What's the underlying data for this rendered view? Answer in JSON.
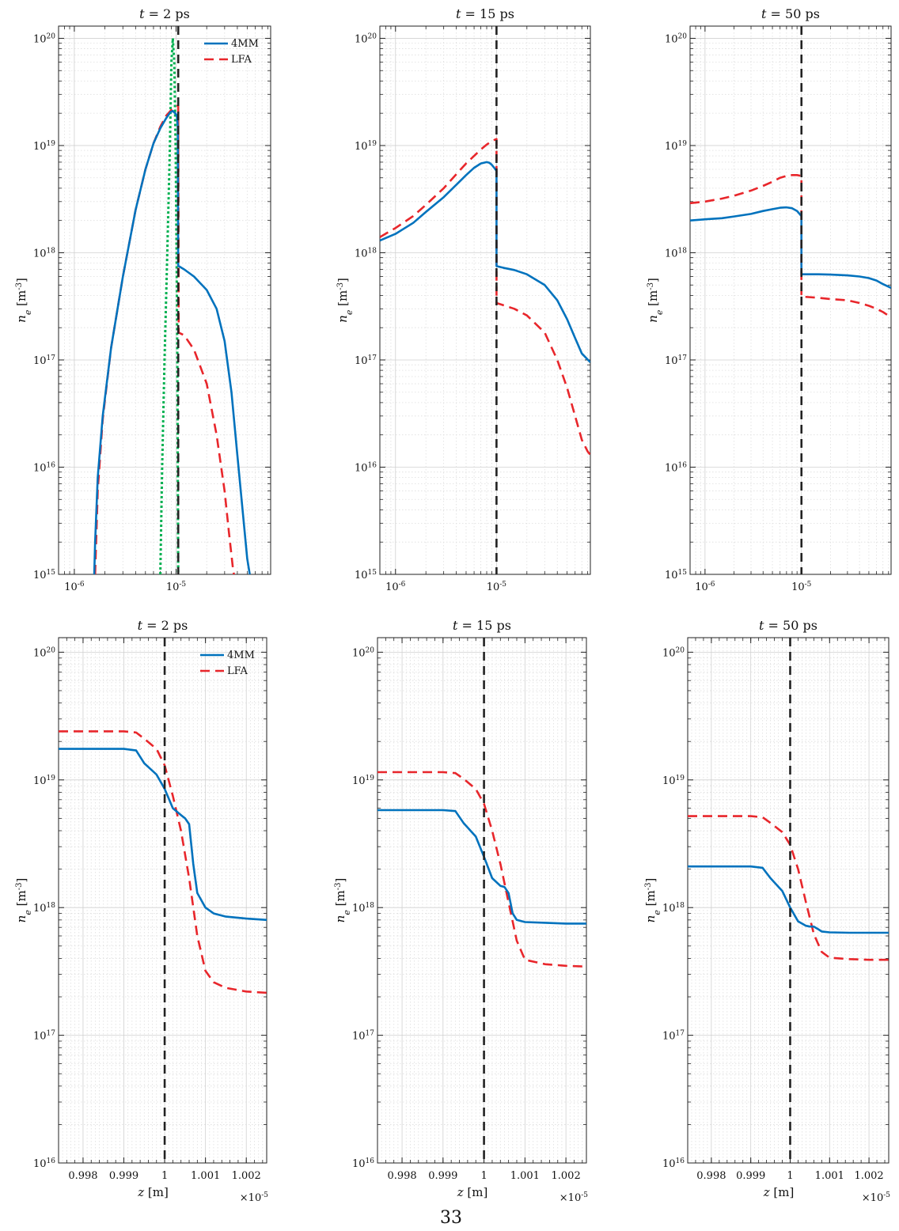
{
  "page_number": "33",
  "colors": {
    "4MM": "#0072bd",
    "LFA": "#e8262b",
    "reference": "#00b050",
    "interface": "#222222"
  },
  "chart_data": [
    {
      "id": "top-left",
      "type": "line",
      "title": "t = 2 ps",
      "xscale": "log",
      "yscale": "log",
      "xlim": [
        7e-07,
        8.5e-05
      ],
      "ylim": [
        1000000000000000.0,
        1.3e+20
      ],
      "ylabel": "n_e [m^-3]",
      "xlabel": "",
      "xticks": [
        {
          "v": 1e-06,
          "label": "10^-6"
        },
        {
          "v": 1e-05,
          "label": "10^-5"
        }
      ],
      "yticks": [
        {
          "v": 1000000000000000.0,
          "label": "10^15"
        },
        {
          "v": 1e+16,
          "label": "10^16"
        },
        {
          "v": 1e+17,
          "label": "10^17"
        },
        {
          "v": 1e+18,
          "label": "10^18"
        },
        {
          "v": 1e+19,
          "label": "10^19"
        },
        {
          "v": 1e+20,
          "label": "10^20"
        }
      ],
      "grid": true,
      "legend": "top-right",
      "interface_x": 1.05e-05,
      "series": [
        {
          "name": "4MM",
          "color": "#0072bd",
          "dash": "solid",
          "x": [
            1.57e-06,
            1.6e-06,
            1.7e-06,
            1.9e-06,
            2.3e-06,
            3e-06,
            4e-06,
            5e-06,
            6e-06,
            7e-06,
            8e-06,
            8.8e-06,
            9.3e-06,
            9.8e-06,
            1.02e-05,
            1.04e-05,
            1.05e-05,
            1.06e-05,
            1.2e-05,
            1.5e-05,
            2e-05,
            2.5e-05,
            3e-05,
            3.5e-05,
            4e-05,
            4.5e-05,
            5e-05,
            5.3e-05
          ],
          "y": [
            1000000000000000.0,
            2000000000000000.0,
            8000000000000000.0,
            3e+16,
            1.3e+17,
            6e+17,
            2.5e+18,
            6e+18,
            1.05e+19,
            1.45e+19,
            1.8e+19,
            2.05e+19,
            2.1e+19,
            2e+19,
            1.9e+19,
            1.5e+19,
            7.5e+17,
            7.5e+17,
            7e+17,
            6e+17,
            4.5e+17,
            3e+17,
            1.5e+17,
            5e+16,
            1.3e+16,
            4000000000000000.0,
            1400000000000000.0,
            1000000000000000.0
          ]
        },
        {
          "name": "LFA",
          "color": "#e8262b",
          "dash": "dashed",
          "x": [
            1.6e-06,
            1.7e-06,
            1.9e-06,
            2.3e-06,
            3e-06,
            4e-06,
            5e-06,
            6e-06,
            7e-06,
            8e-06,
            9e-06,
            9.5e-06,
            1.02e-05,
            1.05e-05,
            1.06e-05,
            1.2e-05,
            1.5e-05,
            2e-05,
            2.5e-05,
            3e-05,
            3.3e-05,
            3.6e-05,
            3.7e-05
          ],
          "y": [
            1000000000000000.0,
            6000000000000000.0,
            2.8e+16,
            1.3e+17,
            6e+17,
            2.5e+18,
            6e+18,
            1.05e+19,
            1.5e+19,
            1.9e+19,
            2.15e+19,
            2.2e+19,
            2.3e+19,
            2.4e+19,
            1.8e+17,
            1.7e+17,
            1.25e+17,
            6e+16,
            2e+16,
            6000000000000000.0,
            2500000000000000.0,
            1200000000000000.0,
            1000000000000000.0
          ]
        },
        {
          "name": "",
          "color": "#00b050",
          "dash": "dotted",
          "x": [
            7e-06,
            7.3e-06,
            7.7e-06,
            8.2e-06,
            8.7e-06,
            9e-06,
            9.3e-06,
            9.6e-06,
            9.9e-06,
            1.01e-05,
            1.03e-05,
            1.05e-05
          ],
          "y": [
            1000000000000000.0,
            1e+16,
            1e+17,
            1e+18,
            1e+19,
            6e+19,
            1e+20,
            6e+19,
            1e+19,
            1e+18,
            1e+17,
            1000000000000000.0
          ]
        }
      ],
      "legend_items": [
        "4MM",
        "LFA"
      ]
    },
    {
      "id": "top-middle",
      "type": "line",
      "title": "t = 15 ps",
      "xscale": "log",
      "yscale": "log",
      "xlim": [
        7e-07,
        8.5e-05
      ],
      "ylim": [
        1000000000000000.0,
        1.3e+20
      ],
      "ylabel": "n_e [m^-3]",
      "xlabel": "",
      "xticks": [
        {
          "v": 1e-06,
          "label": "10^-6"
        },
        {
          "v": 1e-05,
          "label": "10^-5"
        }
      ],
      "yticks": [
        {
          "v": 1000000000000000.0,
          "label": "10^15"
        },
        {
          "v": 1e+16,
          "label": "10^16"
        },
        {
          "v": 1e+17,
          "label": "10^17"
        },
        {
          "v": 1e+18,
          "label": "10^18"
        },
        {
          "v": 1e+19,
          "label": "10^19"
        },
        {
          "v": 1e+20,
          "label": "10^20"
        }
      ],
      "grid": true,
      "legend": "none",
      "interface_x": 1e-05,
      "series": [
        {
          "name": "4MM",
          "color": "#0072bd",
          "dash": "solid",
          "x": [
            7e-07,
            1e-06,
            1.5e-06,
            2e-06,
            3e-06,
            4e-06,
            5e-06,
            6e-06,
            7e-06,
            8e-06,
            8.5e-06,
            9e-06,
            9.5e-06,
            1e-05,
            1e-05,
            1.2e-05,
            1.5e-05,
            2e-05,
            3e-05,
            4e-05,
            5e-05,
            6e-05,
            7e-05,
            8.5e-05
          ],
          "y": [
            1.3e+18,
            1.5e+18,
            1.9e+18,
            2.4e+18,
            3.3e+18,
            4.3e+18,
            5.3e+18,
            6.2e+18,
            6.8e+18,
            7e+18,
            6.9e+18,
            6.6e+18,
            6.2e+18,
            5.8e+18,
            7.5e+17,
            7.2e+17,
            6.9e+17,
            6.3e+17,
            5e+17,
            3.6e+17,
            2.4e+17,
            1.6e+17,
            1.15e+17,
            9.5e+16
          ]
        },
        {
          "name": "LFA",
          "color": "#e8262b",
          "dash": "dashed",
          "x": [
            7e-07,
            1e-06,
            1.5e-06,
            2e-06,
            3e-06,
            4e-06,
            5e-06,
            6e-06,
            7e-06,
            8e-06,
            9e-06,
            1e-05,
            1e-05,
            1.5e-05,
            2e-05,
            3e-05,
            4e-05,
            5e-05,
            6e-05,
            7e-05,
            8e-05,
            8.5e-05
          ],
          "y": [
            1.4e+18,
            1.7e+18,
            2.2e+18,
            2.8e+18,
            4e+18,
            5.4e+18,
            6.8e+18,
            8e+18,
            9.2e+18,
            1.02e+19,
            1.1e+19,
            1.15e+19,
            3.4e+17,
            3e+17,
            2.6e+17,
            1.8e+17,
            1e+17,
            5.5e+16,
            3e+16,
            1.8e+16,
            1.4e+16,
            1.3e+16
          ]
        }
      ],
      "legend_items": []
    },
    {
      "id": "top-right",
      "type": "line",
      "title": "t = 50 ps",
      "xscale": "log",
      "yscale": "log",
      "xlim": [
        7e-07,
        8.5e-05
      ],
      "ylim": [
        1000000000000000.0,
        1.3e+20
      ],
      "ylabel": "n_e [m^-3]",
      "xlabel": "",
      "xticks": [
        {
          "v": 1e-06,
          "label": "10^-6"
        },
        {
          "v": 1e-05,
          "label": "10^-5"
        }
      ],
      "yticks": [
        {
          "v": 1000000000000000.0,
          "label": "10^15"
        },
        {
          "v": 1e+16,
          "label": "10^16"
        },
        {
          "v": 1e+17,
          "label": "10^17"
        },
        {
          "v": 1e+18,
          "label": "10^18"
        },
        {
          "v": 1e+19,
          "label": "10^19"
        },
        {
          "v": 1e+20,
          "label": "10^20"
        }
      ],
      "grid": true,
      "legend": "none",
      "interface_x": 1e-05,
      "series": [
        {
          "name": "4MM",
          "color": "#0072bd",
          "dash": "solid",
          "x": [
            7e-07,
            1e-06,
            1.5e-06,
            2e-06,
            3e-06,
            4e-06,
            5e-06,
            6e-06,
            7e-06,
            8e-06,
            9e-06,
            1e-05,
            1e-05,
            1.5e-05,
            2e-05,
            3e-05,
            4e-05,
            5e-05,
            6e-05,
            7e-05,
            8.5e-05
          ],
          "y": [
            2e+18,
            2.05e+18,
            2.1e+18,
            2.18e+18,
            2.3e+18,
            2.45e+18,
            2.55e+18,
            2.63e+18,
            2.65e+18,
            2.6e+18,
            2.45e+18,
            2.2e+18,
            6.3e+17,
            6.3e+17,
            6.25e+17,
            6.15e+17,
            6e+17,
            5.8e+17,
            5.5e+17,
            5.1e+17,
            4.7e+17
          ]
        },
        {
          "name": "LFA",
          "color": "#e8262b",
          "dash": "dashed",
          "x": [
            7e-07,
            1e-06,
            1.5e-06,
            2e-06,
            3e-06,
            4e-06,
            5e-06,
            6e-06,
            7e-06,
            8e-06,
            9e-06,
            1e-05,
            1e-05,
            1.5e-05,
            2e-05,
            3e-05,
            4e-05,
            5e-05,
            6e-05,
            7e-05,
            8.5e-05
          ],
          "y": [
            2.9e+18,
            3e+18,
            3.2e+18,
            3.4e+18,
            3.8e+18,
            4.2e+18,
            4.6e+18,
            5e+18,
            5.2e+18,
            5.3e+18,
            5.3e+18,
            5.2e+18,
            3.9e+17,
            3.8e+17,
            3.7e+17,
            3.6e+17,
            3.4e+17,
            3.2e+17,
            3e+17,
            2.8e+17,
            2.5e+17
          ]
        }
      ],
      "legend_items": []
    },
    {
      "id": "bottom-left",
      "type": "line",
      "title": "t = 2 ps",
      "xscale": "linear",
      "yscale": "log",
      "xlim": [
        0.99974,
        1.00025
      ],
      "ylim": [
        1e+16,
        1.3e+20
      ],
      "ylabel": "n_e [m^-3]",
      "xlabel": "z [m]",
      "xmultiplier": "×10^-5",
      "xticks": [
        {
          "v": 0.9998,
          "label": "0.998"
        },
        {
          "v": 0.9999,
          "label": "0.999"
        },
        {
          "v": 1.0,
          "label": "1"
        },
        {
          "v": 1.0001,
          "label": "1.001"
        },
        {
          "v": 1.0002,
          "label": "1.002"
        }
      ],
      "yticks": [
        {
          "v": 1e+16,
          "label": "10^16"
        },
        {
          "v": 1e+17,
          "label": "10^17"
        },
        {
          "v": 1e+18,
          "label": "10^18"
        },
        {
          "v": 1e+19,
          "label": "10^19"
        },
        {
          "v": 1e+20,
          "label": "10^20"
        }
      ],
      "grid": true,
      "legend": "top-right",
      "interface_x": 1.0,
      "series": [
        {
          "name": "4MM",
          "color": "#0072bd",
          "dash": "solid",
          "x": [
            0.99974,
            0.9999,
            0.99993,
            0.99995,
            0.99998,
            1.0,
            1.00002,
            1.00004,
            1.00005,
            1.00006,
            1.00007,
            1.00008,
            1.0001,
            1.00012,
            1.00015,
            1.0002,
            1.00025
          ],
          "y": [
            1.75e+19,
            1.75e+19,
            1.7e+19,
            1.35e+19,
            1.1e+19,
            8.5e+18,
            6e+18,
            5.3e+18,
            5e+18,
            4.5e+18,
            2.2e+18,
            1.3e+18,
            1e+18,
            9e+17,
            8.5e+17,
            8.2e+17,
            8e+17
          ]
        },
        {
          "name": "LFA",
          "color": "#e8262b",
          "dash": "dashed",
          "x": [
            0.99974,
            0.9999,
            0.99993,
            0.99995,
            0.99998,
            1.0,
            1.00002,
            1.00004,
            1.00006,
            1.00008,
            1.0001,
            1.00012,
            1.00015,
            1.0002,
            1.00025
          ],
          "y": [
            2.4e+19,
            2.4e+19,
            2.35e+19,
            2.1e+19,
            1.75e+19,
            1.3e+19,
            7.5e+18,
            4e+18,
            1.7e+18,
            6e+17,
            3.2e+17,
            2.6e+17,
            2.35e+17,
            2.2e+17,
            2.15e+17
          ]
        }
      ],
      "legend_items": [
        "4MM",
        "LFA"
      ]
    },
    {
      "id": "bottom-middle",
      "type": "line",
      "title": "t = 15 ps",
      "xscale": "linear",
      "yscale": "log",
      "xlim": [
        0.99974,
        1.00025
      ],
      "ylim": [
        1e+16,
        1.3e+20
      ],
      "ylabel": "n_e [m^-3]",
      "xlabel": "z [m]",
      "xmultiplier": "×10^-5",
      "xticks": [
        {
          "v": 0.9998,
          "label": "0.998"
        },
        {
          "v": 0.9999,
          "label": "0.999"
        },
        {
          "v": 1.0,
          "label": "1"
        },
        {
          "v": 1.0001,
          "label": "1.001"
        },
        {
          "v": 1.0002,
          "label": "1.002"
        }
      ],
      "yticks": [
        {
          "v": 1e+16,
          "label": "10^16"
        },
        {
          "v": 1e+17,
          "label": "10^17"
        },
        {
          "v": 1e+18,
          "label": "10^18"
        },
        {
          "v": 1e+19,
          "label": "10^19"
        },
        {
          "v": 1e+20,
          "label": "10^20"
        }
      ],
      "grid": true,
      "legend": "none",
      "interface_x": 1.0,
      "series": [
        {
          "name": "4MM",
          "color": "#0072bd",
          "dash": "solid",
          "x": [
            0.99974,
            0.9999,
            0.99993,
            0.99995,
            0.99998,
            1.0,
            1.00002,
            1.00004,
            1.00005,
            1.00006,
            1.00007,
            1.00008,
            1.0001,
            1.00015,
            1.0002,
            1.00025
          ],
          "y": [
            5.8e+18,
            5.8e+18,
            5.7e+18,
            4.6e+18,
            3.6e+18,
            2.5e+18,
            1.7e+18,
            1.48e+18,
            1.45e+18,
            1.3e+18,
            9e+17,
            8e+17,
            7.7e+17,
            7.6e+17,
            7.5e+17,
            7.5e+17
          ]
        },
        {
          "name": "LFA",
          "color": "#e8262b",
          "dash": "dashed",
          "x": [
            0.99974,
            0.9999,
            0.99993,
            0.99995,
            0.99998,
            1.0,
            1.00002,
            1.00004,
            1.00006,
            1.00008,
            1.0001,
            1.00015,
            1.0002,
            1.00025
          ],
          "y": [
            1.15e+19,
            1.15e+19,
            1.13e+19,
            1.02e+19,
            8.5e+18,
            6.5e+18,
            4e+18,
            2.2e+18,
            1.1e+18,
            5.5e+17,
            3.9e+17,
            3.6e+17,
            3.5e+17,
            3.45e+17
          ]
        }
      ],
      "legend_items": []
    },
    {
      "id": "bottom-right",
      "type": "line",
      "title": "t = 50 ps",
      "xscale": "linear",
      "yscale": "log",
      "xlim": [
        0.99974,
        1.00025
      ],
      "ylim": [
        1e+16,
        1.3e+20
      ],
      "ylabel": "n_e [m^-3]",
      "xlabel": "z [m]",
      "xmultiplier": "×10^-5",
      "xticks": [
        {
          "v": 0.9998,
          "label": "0.998"
        },
        {
          "v": 0.9999,
          "label": "0.999"
        },
        {
          "v": 1.0,
          "label": "1"
        },
        {
          "v": 1.0001,
          "label": "1.001"
        },
        {
          "v": 1.0002,
          "label": "1.002"
        }
      ],
      "yticks": [
        {
          "v": 1e+16,
          "label": "10^16"
        },
        {
          "v": 1e+17,
          "label": "10^17"
        },
        {
          "v": 1e+18,
          "label": "10^18"
        },
        {
          "v": 1e+19,
          "label": "10^19"
        },
        {
          "v": 1e+20,
          "label": "10^20"
        }
      ],
      "grid": true,
      "legend": "none",
      "interface_x": 1.0,
      "series": [
        {
          "name": "4MM",
          "color": "#0072bd",
          "dash": "solid",
          "x": [
            0.99974,
            0.9999,
            0.99993,
            0.99995,
            0.99998,
            1.0,
            1.00002,
            1.00004,
            1.00005,
            1.00006,
            1.00007,
            1.00008,
            1.0001,
            1.00015,
            1.0002,
            1.00025
          ],
          "y": [
            2.1e+18,
            2.1e+18,
            2.05e+18,
            1.7e+18,
            1.35e+18,
            1e+18,
            7.8e+17,
            7.2e+17,
            7.1e+17,
            7.1e+17,
            6.8e+17,
            6.5e+17,
            6.4e+17,
            6.35e+17,
            6.35e+17,
            6.35e+17
          ]
        },
        {
          "name": "LFA",
          "color": "#e8262b",
          "dash": "dashed",
          "x": [
            0.99974,
            0.9999,
            0.99993,
            0.99995,
            0.99998,
            1.0,
            1.00002,
            1.00004,
            1.00006,
            1.00008,
            1.0001,
            1.00015,
            1.0002,
            1.00025
          ],
          "y": [
            5.2e+18,
            5.2e+18,
            5.1e+18,
            4.6e+18,
            3.9e+18,
            3.1e+18,
            2e+18,
            1.1e+18,
            6.2e+17,
            4.5e+17,
            4.05e+17,
            3.95e+17,
            3.9e+17,
            3.9e+17
          ]
        }
      ],
      "legend_items": []
    }
  ]
}
